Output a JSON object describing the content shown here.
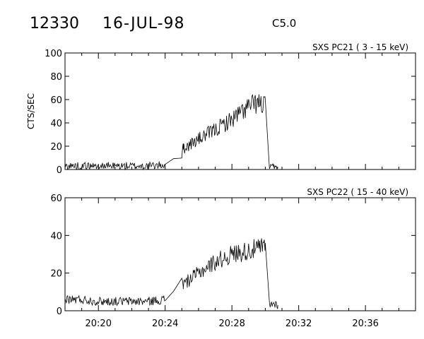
{
  "header": {
    "event_number": "12330",
    "date": "16-JUL-98",
    "goes_class": "C5.0"
  },
  "chart_data": [
    {
      "type": "line",
      "title": "SXS PC21  (  3 - 15 keV)",
      "ylabel": "CTS/SEC",
      "xlabel": "",
      "ylim": [
        0,
        100
      ],
      "yticks": [
        0,
        20,
        40,
        60,
        80,
        100
      ],
      "xlim": [
        "20:18",
        "20:39"
      ],
      "xticks": [
        "20:20",
        "20:24",
        "20:28",
        "20:32",
        "20:36"
      ],
      "grid": false,
      "series": [
        {
          "x": [
            "20:18",
            "20:19",
            "20:20",
            "20:21",
            "20:22",
            "20:23",
            "20:24",
            "20:24:30",
            "20:25",
            "20:25:05",
            "20:26",
            "20:27",
            "20:28",
            "20:29",
            "20:29:30",
            "20:30",
            "20:30:15",
            "20:30:30",
            "20:30:45"
          ],
          "values": [
            3,
            3,
            3,
            3,
            3,
            3,
            4,
            12,
            13,
            18,
            26,
            34,
            43,
            54,
            57,
            55,
            1,
            2,
            1
          ]
        }
      ]
    },
    {
      "type": "line",
      "title": "SXS PC22  ( 15 - 40 keV)",
      "ylabel": "",
      "xlabel": "",
      "ylim": [
        0,
        60
      ],
      "yticks": [
        0,
        20,
        40,
        60
      ],
      "xlim": [
        "20:18",
        "20:39"
      ],
      "xticks": [
        "20:20",
        "20:24",
        "20:28",
        "20:32",
        "20:36"
      ],
      "grid": false,
      "series": [
        {
          "x": [
            "20:18",
            "20:19",
            "20:20",
            "20:21",
            "20:22",
            "20:23",
            "20:24",
            "20:24:30",
            "20:25",
            "20:25:05",
            "20:26",
            "20:27",
            "20:28",
            "20:29",
            "20:29:30",
            "20:30",
            "20:30:15",
            "20:30:30",
            "20:30:45"
          ],
          "values": [
            6,
            6,
            5,
            5,
            5,
            5,
            6,
            11,
            18,
            14,
            20,
            26,
            30,
            32,
            33,
            34,
            3,
            4,
            3
          ]
        }
      ]
    }
  ]
}
